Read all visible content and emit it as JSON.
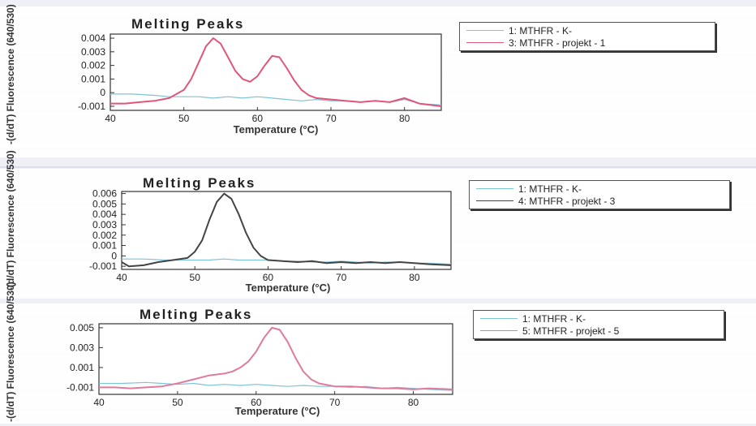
{
  "chart_data": [
    {
      "type": "line",
      "title": "Melting Peaks",
      "xlabel": "Temperature (°C)",
      "ylabel": "-(d/dT) Fluorescence (640/530)",
      "xlim": [
        40,
        85
      ],
      "ylim": [
        -0.0013,
        0.0043
      ],
      "x_ticks": [
        "40",
        "50",
        "60",
        "70",
        "80"
      ],
      "y_ticks": [
        "0.004",
        "0.003",
        "0.002",
        "0.001",
        "0",
        "-0.001"
      ],
      "legend": "top-right",
      "series": [
        {
          "name": "1: MTHFR - K-",
          "color": "#7fc3d6",
          "x": [
            40,
            43,
            46,
            48,
            50,
            52,
            54,
            56,
            58,
            60,
            62,
            64,
            66,
            68,
            70,
            72,
            74,
            76,
            78,
            80,
            82,
            85
          ],
          "y": [
            -0.0001,
            -0.0001,
            -0.0002,
            -0.0003,
            -0.0003,
            -0.0003,
            -0.0004,
            -0.0003,
            -0.0004,
            -0.0003,
            -0.0004,
            -0.0005,
            -0.0006,
            -0.0005,
            -0.0006,
            -0.0006,
            -0.0007,
            -0.0006,
            -0.0007,
            -0.0005,
            -0.0008,
            -0.0009
          ]
        },
        {
          "name": "3: MTHFR - projekt - 1",
          "color": "#e0567a",
          "x": [
            40,
            42,
            44,
            46,
            48,
            50,
            51,
            52,
            53,
            54,
            55,
            56,
            57,
            58,
            59,
            60,
            61,
            62,
            63,
            64,
            65,
            66,
            67,
            68,
            70,
            72,
            74,
            76,
            78,
            80,
            82,
            85
          ],
          "y": [
            -0.0008,
            -0.0008,
            -0.0007,
            -0.0006,
            -0.0004,
            0.0002,
            0.001,
            0.0022,
            0.0034,
            0.004,
            0.0036,
            0.0026,
            0.0016,
            0.001,
            0.0008,
            0.0012,
            0.002,
            0.0027,
            0.0026,
            0.0018,
            0.0009,
            0.0002,
            -0.0002,
            -0.0004,
            -0.0005,
            -0.0006,
            -0.0007,
            -0.0006,
            -0.0007,
            -0.0004,
            -0.0008,
            -0.001
          ]
        }
      ]
    },
    {
      "type": "line",
      "title": "Melting Peaks",
      "xlabel": "Temperature (°C)",
      "ylabel": "-(d/dT) Fluorescence (640/530)",
      "xlim": [
        40,
        85
      ],
      "ylim": [
        -0.0013,
        0.0062
      ],
      "x_ticks": [
        "40",
        "50",
        "60",
        "70",
        "80"
      ],
      "y_ticks": [
        "0.006",
        "0.005",
        "0.004",
        "0.003",
        "0.002",
        "0.001",
        "0",
        "-0.001"
      ],
      "legend": "top-right",
      "series": [
        {
          "name": "1: MTHFR - K-",
          "color": "#7fc3d6",
          "x": [
            40,
            43,
            46,
            48,
            50,
            52,
            54,
            56,
            58,
            60,
            62,
            64,
            66,
            68,
            70,
            72,
            74,
            76,
            78,
            80,
            82,
            85
          ],
          "y": [
            -0.0003,
            -0.0003,
            -0.0004,
            -0.0004,
            -0.0004,
            -0.0004,
            -0.0003,
            -0.0004,
            -0.0004,
            -0.0004,
            -0.0005,
            -0.0005,
            -0.0006,
            -0.0006,
            -0.0005,
            -0.0006,
            -0.0007,
            -0.0006,
            -0.0006,
            -0.0007,
            -0.0007,
            -0.0008
          ]
        },
        {
          "name": "4: MTHFR - projekt - 3",
          "color": "#444444",
          "x": [
            40,
            41,
            43,
            45,
            47,
            49,
            50,
            51,
            52,
            53,
            54,
            55,
            56,
            57,
            58,
            59,
            60,
            62,
            64,
            66,
            68,
            70,
            72,
            74,
            76,
            78,
            80,
            82,
            85
          ],
          "y": [
            -0.0006,
            -0.001,
            -0.0009,
            -0.0006,
            -0.0004,
            -0.0002,
            0.0004,
            0.0015,
            0.0035,
            0.0052,
            0.006,
            0.0055,
            0.004,
            0.0022,
            0.0008,
            0.0,
            -0.0004,
            -0.0005,
            -0.0006,
            -0.0005,
            -0.0007,
            -0.0006,
            -0.0007,
            -0.0006,
            -0.0007,
            -0.0006,
            -0.0007,
            -0.0008,
            -0.0009
          ]
        }
      ]
    },
    {
      "type": "line",
      "title": "Melting Peaks",
      "xlabel": "Temperature (°C)",
      "ylabel": "-(d/dT) Fluorescence (640/530)",
      "xlim": [
        40,
        85
      ],
      "ylim": [
        -0.0017,
        0.0054
      ],
      "x_ticks": [
        "40",
        "50",
        "60",
        "70",
        "80"
      ],
      "y_ticks": [
        "0.005",
        "0.003",
        "0.001",
        "-0.001"
      ],
      "legend": "top-right",
      "series": [
        {
          "name": "1: MTHFR - K-",
          "color": "#7fc3d6",
          "x": [
            40,
            43,
            46,
            48,
            50,
            52,
            54,
            56,
            58,
            60,
            62,
            64,
            66,
            68,
            70,
            72,
            74,
            76,
            78,
            80,
            82,
            85
          ],
          "y": [
            -0.0006,
            -0.0006,
            -0.0005,
            -0.0006,
            -0.0007,
            -0.0006,
            -0.0008,
            -0.0007,
            -0.0008,
            -0.0007,
            -0.0008,
            -0.0009,
            -0.0008,
            -0.0009,
            -0.0009,
            -0.001,
            -0.0009,
            -0.0011,
            -0.001,
            -0.0011,
            -0.0012,
            -0.0013
          ]
        },
        {
          "name": "5: MTHFR - projekt - 5",
          "color": "#e07a9e",
          "x": [
            40,
            42,
            44,
            46,
            48,
            50,
            52,
            54,
            56,
            57,
            58,
            59,
            60,
            61,
            62,
            63,
            64,
            65,
            66,
            67,
            68,
            70,
            72,
            74,
            76,
            78,
            80,
            82,
            85
          ],
          "y": [
            -0.001,
            -0.001,
            -0.0011,
            -0.001,
            -0.0009,
            -0.0006,
            -0.0002,
            0.0002,
            0.0004,
            0.0006,
            0.001,
            0.0016,
            0.0026,
            0.004,
            0.005,
            0.0048,
            0.0036,
            0.002,
            0.0006,
            -0.0002,
            -0.0006,
            -0.0009,
            -0.0009,
            -0.001,
            -0.0011,
            -0.0011,
            -0.0012,
            -0.0011,
            -0.0012
          ]
        }
      ]
    }
  ]
}
